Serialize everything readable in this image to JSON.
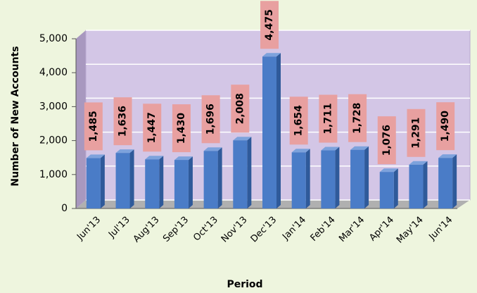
{
  "chart_data": {
    "type": "bar",
    "y_axis_label": "Number of New Accounts",
    "x_axis_label": "Period",
    "categories": [
      "Jun'13",
      "Jul'13",
      "Aug'13",
      "Sep'13",
      "Oct'13",
      "Nov'13",
      "Dec'13",
      "Jan'14",
      "Feb'14",
      "Mar'14",
      "Apr'14",
      "May'14",
      "Jun'14"
    ],
    "values": [
      1485,
      1636,
      1447,
      1430,
      1696,
      2008,
      4475,
      1654,
      1711,
      1728,
      1076,
      1291,
      1490
    ],
    "value_labels": [
      "1,485",
      "1,636",
      "1,447",
      "1,430",
      "1,696",
      "2,008",
      "4,475",
      "1,654",
      "1,711",
      "1,728",
      "1,076",
      "1,291",
      "1,490"
    ],
    "color": "#4a7cc7",
    "ylim": [
      0,
      5000
    ],
    "yticks": [
      0,
      {
        "value": 1000,
        "label": "1,000"
      },
      {
        "value": 2000,
        "label": "2,000"
      },
      {
        "value": 3000,
        "label": "3,000"
      },
      {
        "value": 4000,
        "label": "4,000"
      },
      {
        "value": 5000,
        "label": "5,000"
      }
    ],
    "grid": true
  }
}
